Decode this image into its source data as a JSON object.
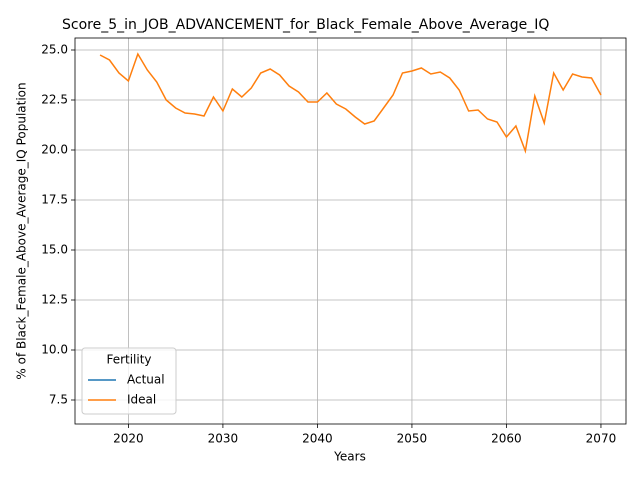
{
  "chart_data": {
    "type": "line",
    "title": "Score_5_in_JOB_ADVANCEMENT_for_Black_Female_Above_Average_IQ",
    "xlabel": "Years",
    "ylabel": "% of Black_Female_Above_Average_IQ Population",
    "legend_title": "Fertility",
    "legend": "lower left",
    "grid": true,
    "x": [
      2017,
      2018,
      2019,
      2020,
      2021,
      2022,
      2023,
      2024,
      2025,
      2026,
      2027,
      2028,
      2029,
      2030,
      2031,
      2032,
      2033,
      2034,
      2035,
      2036,
      2037,
      2038,
      2039,
      2040,
      2041,
      2042,
      2043,
      2044,
      2045,
      2046,
      2047,
      2048,
      2049,
      2050,
      2051,
      2052,
      2053,
      2054,
      2055,
      2056,
      2057,
      2058,
      2059,
      2060,
      2061,
      2062,
      2063,
      2064,
      2065,
      2066,
      2067,
      2068,
      2069,
      2070
    ],
    "series": [
      {
        "name": "Actual",
        "color": "#1f77b4",
        "values": [
          null,
          null,
          null,
          null,
          null,
          null,
          null,
          null,
          null,
          null,
          null,
          null,
          null,
          null,
          null,
          null,
          null,
          null,
          null,
          null,
          null,
          null,
          null,
          null,
          null,
          null,
          null,
          null,
          null,
          null,
          null,
          null,
          null,
          null,
          null,
          null,
          null,
          null,
          null,
          null,
          null,
          null,
          null,
          null,
          null,
          null,
          null,
          null,
          null,
          null,
          null,
          null,
          null,
          null
        ]
      },
      {
        "name": "Ideal",
        "color": "#ff7f0e",
        "values": [
          24.75,
          24.5,
          23.85,
          23.45,
          24.8,
          24.0,
          23.4,
          22.5,
          22.1,
          21.85,
          21.8,
          21.7,
          22.65,
          21.95,
          23.05,
          22.65,
          23.1,
          23.85,
          24.05,
          23.75,
          23.2,
          22.9,
          22.4,
          22.4,
          22.85,
          22.3,
          22.05,
          21.65,
          21.3,
          21.45,
          22.1,
          22.75,
          23.85,
          23.95,
          24.1,
          23.8,
          23.9,
          23.6,
          23.0,
          21.95,
          22.0,
          21.55,
          21.4,
          20.65,
          21.2,
          19.95,
          22.7,
          21.35,
          23.85,
          23.0,
          23.8,
          23.65,
          23.6,
          22.75
        ]
      }
    ],
    "xlim": [
      2014.35,
      2072.65
    ],
    "xticks": [
      2020,
      2030,
      2040,
      2050,
      2060,
      2070
    ],
    "ylim": [
      6.3,
      25.6
    ],
    "yticks": [
      7.5,
      {
        "value": 10,
        "label": "10.0"
      },
      12.5,
      {
        "value": 15,
        "label": "15.0"
      },
      17.5,
      {
        "value": 20,
        "label": "20.0"
      },
      22.5,
      {
        "value": 25,
        "label": "25.0"
      }
    ]
  }
}
